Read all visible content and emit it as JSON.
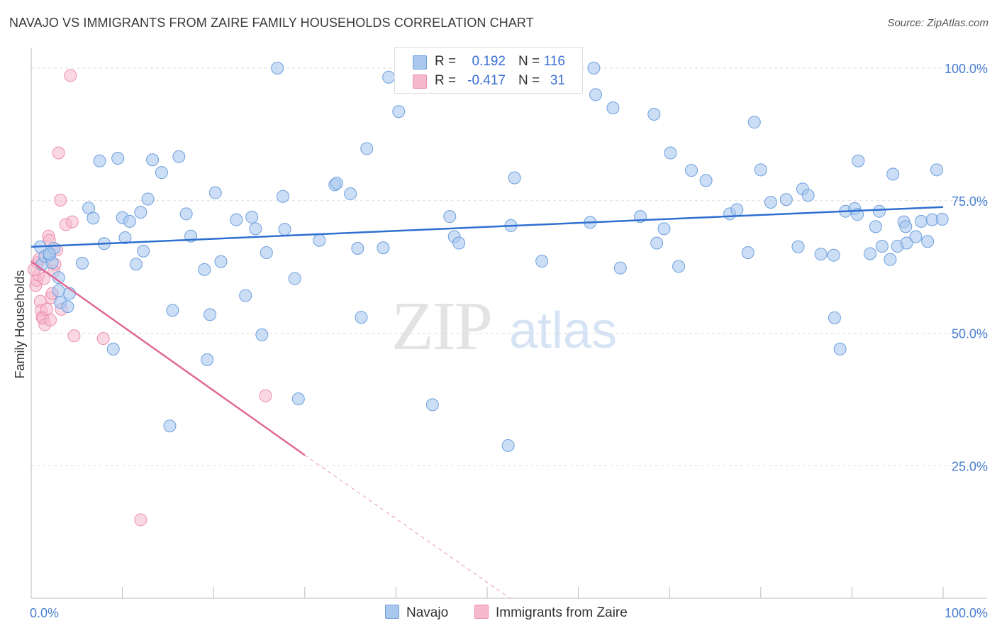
{
  "header": {
    "title": "NAVAJO VS IMMIGRANTS FROM ZAIRE FAMILY HOUSEHOLDS CORRELATION CHART",
    "source": "Source: ZipAtlas.com"
  },
  "watermark": {
    "zip": "ZIP",
    "atlas": "atlas"
  },
  "legend": {
    "rows": [
      {
        "r_label": "R =",
        "r_value": "0.192",
        "n_label": "N =",
        "n_value": "116"
      },
      {
        "r_label": "R =",
        "r_value": "-0.417",
        "n_label": "N =",
        "n_value": "31"
      }
    ]
  },
  "bottom_legend": {
    "navajo": "Navajo",
    "zaire": "Immigrants from Zaire"
  },
  "colors": {
    "navajo_fill": "#aac8ee",
    "navajo_stroke": "#6d9fde",
    "navajo_line": "#2f6fd0",
    "zaire_fill": "#f6b8cc",
    "zaire_stroke": "#ec8fae",
    "zaire_line": "#e06a95",
    "grid": "#dddddd",
    "tick_label": "#4a7fd0"
  },
  "chart_data": {
    "type": "scatter",
    "title": "NAVAJO VS IMMIGRANTS FROM ZAIRE FAMILY HOUSEHOLDS CORRELATION CHART",
    "xlabel": "",
    "ylabel": "Family Households",
    "xlim": [
      0,
      100
    ],
    "ylim": [
      0,
      102
    ],
    "x_ticks": [
      "0.0%",
      "100.0%"
    ],
    "y_ticks": [
      {
        "value": 25,
        "label": "25.0%"
      },
      {
        "value": 50,
        "label": "50.0%"
      },
      {
        "value": 75,
        "label": "75.0%"
      },
      {
        "value": 100,
        "label": "100.0%"
      }
    ],
    "grid": "horizontal dashed",
    "legend_position": "top-center",
    "series": [
      {
        "name": "Navajo",
        "points": [
          [
            1.0,
            66.3
          ],
          [
            1.2,
            63.0
          ],
          [
            1.5,
            64.5
          ],
          [
            2.0,
            64.7
          ],
          [
            2.3,
            63.3
          ],
          [
            2.5,
            66.0
          ],
          [
            3.2,
            55.8
          ],
          [
            3.0,
            60.5
          ],
          [
            4.2,
            57.5
          ],
          [
            4.0,
            55.0
          ],
          [
            5.6,
            63.2
          ],
          [
            6.3,
            73.6
          ],
          [
            6.8,
            71.7
          ],
          [
            7.5,
            82.5
          ],
          [
            8.0,
            66.9
          ],
          [
            9.0,
            47.0
          ],
          [
            9.5,
            83.0
          ],
          [
            10.0,
            71.8
          ],
          [
            10.3,
            68.0
          ],
          [
            10.8,
            71.1
          ],
          [
            11.5,
            63.0
          ],
          [
            12.0,
            72.8
          ],
          [
            12.3,
            65.5
          ],
          [
            12.8,
            75.3
          ],
          [
            13.3,
            82.7
          ],
          [
            14.3,
            80.3
          ],
          [
            15.2,
            32.5
          ],
          [
            15.5,
            54.3
          ],
          [
            16.2,
            83.3
          ],
          [
            17.0,
            72.5
          ],
          [
            17.5,
            68.3
          ],
          [
            19.0,
            62.0
          ],
          [
            19.3,
            45.0
          ],
          [
            19.6,
            53.5
          ],
          [
            20.2,
            76.5
          ],
          [
            20.8,
            63.5
          ],
          [
            22.5,
            71.4
          ],
          [
            23.5,
            57.1
          ],
          [
            24.2,
            71.9
          ],
          [
            24.6,
            69.7
          ],
          [
            25.3,
            49.7
          ],
          [
            25.8,
            65.2
          ],
          [
            27.0,
            100.0
          ],
          [
            27.6,
            75.8
          ],
          [
            27.8,
            69.6
          ],
          [
            28.9,
            60.3
          ],
          [
            29.3,
            37.6
          ],
          [
            31.6,
            67.5
          ],
          [
            33.3,
            78.0
          ],
          [
            33.5,
            78.3
          ],
          [
            35.0,
            76.3
          ],
          [
            35.8,
            66.0
          ],
          [
            36.2,
            53.0
          ],
          [
            36.8,
            84.8
          ],
          [
            38.6,
            66.1
          ],
          [
            39.2,
            98.3
          ],
          [
            40.3,
            91.8
          ],
          [
            44.0,
            36.5
          ],
          [
            45.9,
            72.0
          ],
          [
            46.4,
            68.2
          ],
          [
            46.9,
            67.0
          ],
          [
            52.3,
            28.8
          ],
          [
            52.6,
            70.3
          ],
          [
            53.0,
            79.3
          ],
          [
            56.0,
            63.6
          ],
          [
            61.7,
            100.0
          ],
          [
            61.3,
            70.9
          ],
          [
            61.9,
            95.0
          ],
          [
            63.8,
            92.5
          ],
          [
            64.6,
            62.3
          ],
          [
            66.8,
            72.0
          ],
          [
            68.3,
            91.3
          ],
          [
            68.6,
            67.0
          ],
          [
            69.4,
            69.7
          ],
          [
            70.1,
            84.0
          ],
          [
            71.0,
            62.6
          ],
          [
            72.4,
            80.7
          ],
          [
            74.0,
            78.8
          ],
          [
            76.6,
            72.5
          ],
          [
            77.4,
            73.3
          ],
          [
            78.6,
            65.2
          ],
          [
            79.3,
            89.8
          ],
          [
            80.0,
            80.8
          ],
          [
            81.1,
            74.7
          ],
          [
            82.8,
            75.2
          ],
          [
            84.1,
            66.3
          ],
          [
            84.6,
            77.2
          ],
          [
            85.2,
            76.0
          ],
          [
            86.6,
            64.9
          ],
          [
            88.1,
            52.9
          ],
          [
            88.0,
            64.7
          ],
          [
            88.7,
            47.0
          ],
          [
            89.3,
            73.0
          ],
          [
            90.3,
            73.5
          ],
          [
            90.6,
            72.4
          ],
          [
            90.7,
            82.5
          ],
          [
            92.0,
            65.0
          ],
          [
            92.6,
            70.1
          ],
          [
            93.0,
            73.0
          ],
          [
            93.3,
            66.4
          ],
          [
            94.2,
            63.9
          ],
          [
            94.5,
            80.0
          ],
          [
            95.0,
            66.4
          ],
          [
            95.7,
            71.0
          ],
          [
            95.9,
            70.1
          ],
          [
            96.0,
            67.0
          ],
          [
            97.0,
            68.2
          ],
          [
            97.6,
            71.1
          ],
          [
            98.3,
            67.3
          ],
          [
            98.8,
            71.4
          ],
          [
            99.3,
            80.8
          ],
          [
            99.9,
            71.5
          ],
          [
            3.0,
            58.0
          ],
          [
            2.0,
            65.0
          ]
        ],
        "trend": {
          "x": [
            0,
            100
          ],
          "y": [
            66.3,
            73.8
          ]
        }
      },
      {
        "name": "Immigrants from Zaire",
        "points": [
          [
            0.5,
            59.0
          ],
          [
            0.6,
            60.0
          ],
          [
            0.7,
            63.3
          ],
          [
            0.8,
            61.0
          ],
          [
            0.9,
            64.0
          ],
          [
            1.0,
            56.0
          ],
          [
            1.1,
            54.3
          ],
          [
            1.2,
            53.0
          ],
          [
            1.3,
            52.8
          ],
          [
            1.5,
            51.6
          ],
          [
            1.7,
            54.5
          ],
          [
            1.9,
            68.3
          ],
          [
            2.0,
            67.5
          ],
          [
            2.2,
            56.7
          ],
          [
            2.3,
            57.5
          ],
          [
            2.5,
            61.7
          ],
          [
            2.6,
            63.0
          ],
          [
            2.8,
            65.7
          ],
          [
            3.0,
            84.0
          ],
          [
            3.2,
            75.1
          ],
          [
            3.3,
            54.5
          ],
          [
            3.8,
            70.5
          ],
          [
            4.3,
            98.6
          ],
          [
            4.5,
            71.0
          ],
          [
            4.7,
            49.5
          ],
          [
            7.9,
            49.0
          ],
          [
            12.0,
            14.8
          ],
          [
            25.7,
            38.2
          ],
          [
            1.4,
            60.3
          ],
          [
            0.3,
            62.0
          ],
          [
            2.1,
            52.5
          ]
        ],
        "trend": {
          "x": [
            0,
            30
          ],
          "y": [
            63.5,
            27.0
          ]
        },
        "trend_extension": {
          "x": [
            30,
            52.5
          ],
          "y": [
            27.0,
            0
          ]
        }
      }
    ]
  }
}
